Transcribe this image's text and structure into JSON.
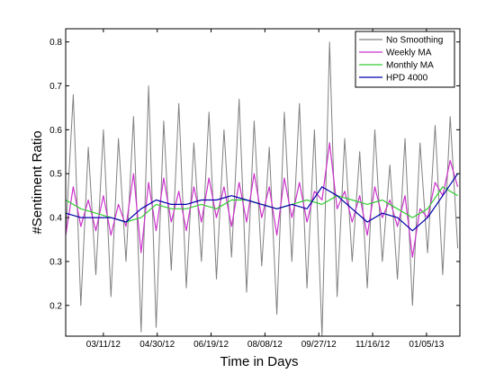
{
  "chart_data": {
    "type": "line",
    "title": "",
    "xlabel": "Time in Days",
    "ylabel": "#Sentiment Ratio",
    "xlim": [
      "2012-02-05",
      "2013-02-05"
    ],
    "ylim": [
      0.13,
      0.83
    ],
    "x_ticks": [
      "2012-03-11",
      "2012-04-30",
      "2012-06-19",
      "2012-08-08",
      "2012-09-27",
      "2012-11-16",
      "2013-01-05"
    ],
    "x_tick_labels": [
      "03/11/12",
      "04/30/12",
      "06/19/12",
      "08/08/12",
      "09/27/12",
      "11/16/12",
      "01/05/13"
    ],
    "y_ticks": [
      0.2,
      0.3,
      0.4,
      0.5,
      0.6,
      0.7,
      0.8
    ],
    "y_tick_labels": [
      "0.2",
      "0.3",
      "0.4",
      "0.5",
      "0.6",
      "0.7",
      "0.8"
    ],
    "grid": false,
    "legend_position": "top-right",
    "series": [
      {
        "name": "No Smoothing",
        "color": "#808080",
        "x": [
          "2012-02-05",
          "2012-02-12",
          "2012-02-19",
          "2012-02-26",
          "2012-03-04",
          "2012-03-11",
          "2012-03-18",
          "2012-03-25",
          "2012-04-01",
          "2012-04-08",
          "2012-04-15",
          "2012-04-22",
          "2012-04-29",
          "2012-05-06",
          "2012-05-13",
          "2012-05-20",
          "2012-05-27",
          "2012-06-03",
          "2012-06-10",
          "2012-06-17",
          "2012-06-24",
          "2012-07-01",
          "2012-07-08",
          "2012-07-15",
          "2012-07-22",
          "2012-07-29",
          "2012-08-05",
          "2012-08-12",
          "2012-08-19",
          "2012-08-26",
          "2012-09-02",
          "2012-09-09",
          "2012-09-16",
          "2012-09-23",
          "2012-09-30",
          "2012-10-07",
          "2012-10-14",
          "2012-10-21",
          "2012-10-28",
          "2012-11-04",
          "2012-11-11",
          "2012-11-18",
          "2012-11-25",
          "2012-12-02",
          "2012-12-09",
          "2012-12-16",
          "2012-12-23",
          "2012-12-30",
          "2013-01-06",
          "2013-01-13",
          "2013-01-20",
          "2013-01-27",
          "2013-02-03"
        ],
        "values": [
          0.36,
          0.68,
          0.2,
          0.56,
          0.27,
          0.6,
          0.22,
          0.58,
          0.3,
          0.63,
          0.14,
          0.7,
          0.15,
          0.62,
          0.28,
          0.66,
          0.24,
          0.57,
          0.3,
          0.64,
          0.26,
          0.6,
          0.31,
          0.67,
          0.23,
          0.62,
          0.29,
          0.56,
          0.18,
          0.64,
          0.3,
          0.66,
          0.24,
          0.6,
          0.13,
          0.8,
          0.22,
          0.58,
          0.3,
          0.55,
          0.24,
          0.6,
          0.3,
          0.52,
          0.26,
          0.58,
          0.2,
          0.57,
          0.32,
          0.61,
          0.27,
          0.63,
          0.33
        ]
      },
      {
        "name": "Weekly MA",
        "color": "#cc33cc",
        "x": [
          "2012-02-05",
          "2012-02-12",
          "2012-02-19",
          "2012-02-26",
          "2012-03-04",
          "2012-03-11",
          "2012-03-18",
          "2012-03-25",
          "2012-04-01",
          "2012-04-08",
          "2012-04-15",
          "2012-04-22",
          "2012-04-29",
          "2012-05-06",
          "2012-05-13",
          "2012-05-20",
          "2012-05-27",
          "2012-06-03",
          "2012-06-10",
          "2012-06-17",
          "2012-06-24",
          "2012-07-01",
          "2012-07-08",
          "2012-07-15",
          "2012-07-22",
          "2012-07-29",
          "2012-08-05",
          "2012-08-12",
          "2012-08-19",
          "2012-08-26",
          "2012-09-02",
          "2012-09-09",
          "2012-09-16",
          "2012-09-23",
          "2012-09-30",
          "2012-10-07",
          "2012-10-14",
          "2012-10-21",
          "2012-10-28",
          "2012-11-04",
          "2012-11-11",
          "2012-11-18",
          "2012-11-25",
          "2012-12-02",
          "2012-12-09",
          "2012-12-16",
          "2012-12-23",
          "2012-12-30",
          "2013-01-06",
          "2013-01-13",
          "2013-01-20",
          "2013-01-27",
          "2013-02-03"
        ],
        "values": [
          0.36,
          0.47,
          0.38,
          0.44,
          0.37,
          0.45,
          0.36,
          0.43,
          0.38,
          0.5,
          0.32,
          0.48,
          0.37,
          0.49,
          0.39,
          0.46,
          0.37,
          0.47,
          0.39,
          0.49,
          0.4,
          0.47,
          0.38,
          0.48,
          0.39,
          0.5,
          0.4,
          0.47,
          0.36,
          0.49,
          0.4,
          0.48,
          0.39,
          0.46,
          0.44,
          0.57,
          0.42,
          0.46,
          0.39,
          0.45,
          0.36,
          0.47,
          0.4,
          0.44,
          0.38,
          0.45,
          0.31,
          0.42,
          0.4,
          0.48,
          0.45,
          0.53,
          0.47
        ]
      },
      {
        "name": "Monthly MA",
        "color": "#33cc33",
        "x": [
          "2012-02-05",
          "2012-02-19",
          "2012-03-04",
          "2012-03-18",
          "2012-04-01",
          "2012-04-15",
          "2012-04-29",
          "2012-05-13",
          "2012-05-27",
          "2012-06-10",
          "2012-06-24",
          "2012-07-08",
          "2012-07-22",
          "2012-08-05",
          "2012-08-19",
          "2012-09-02",
          "2012-09-16",
          "2012-09-30",
          "2012-10-14",
          "2012-10-28",
          "2012-11-11",
          "2012-11-25",
          "2012-12-09",
          "2012-12-23",
          "2013-01-06",
          "2013-01-20",
          "2013-02-03"
        ],
        "values": [
          0.44,
          0.42,
          0.41,
          0.4,
          0.39,
          0.4,
          0.43,
          0.42,
          0.42,
          0.43,
          0.42,
          0.44,
          0.44,
          0.43,
          0.42,
          0.43,
          0.44,
          0.43,
          0.45,
          0.44,
          0.43,
          0.44,
          0.42,
          0.4,
          0.42,
          0.47,
          0.45
        ]
      },
      {
        "name": "HPD 4000",
        "color": "#0000aa",
        "x": [
          "2012-02-05",
          "2012-02-19",
          "2012-03-04",
          "2012-03-18",
          "2012-04-01",
          "2012-04-15",
          "2012-04-29",
          "2012-05-13",
          "2012-05-27",
          "2012-06-10",
          "2012-06-24",
          "2012-07-08",
          "2012-07-22",
          "2012-08-05",
          "2012-08-19",
          "2012-09-02",
          "2012-09-16",
          "2012-09-30",
          "2012-10-14",
          "2012-10-28",
          "2012-11-11",
          "2012-11-25",
          "2012-12-09",
          "2012-12-23",
          "2013-01-06",
          "2013-01-20",
          "2013-02-03"
        ],
        "values": [
          0.41,
          0.4,
          0.4,
          0.4,
          0.39,
          0.42,
          0.44,
          0.43,
          0.43,
          0.44,
          0.44,
          0.45,
          0.44,
          0.43,
          0.42,
          0.43,
          0.42,
          0.47,
          0.45,
          0.42,
          0.39,
          0.41,
          0.4,
          0.37,
          0.4,
          0.45,
          0.5
        ]
      }
    ]
  }
}
